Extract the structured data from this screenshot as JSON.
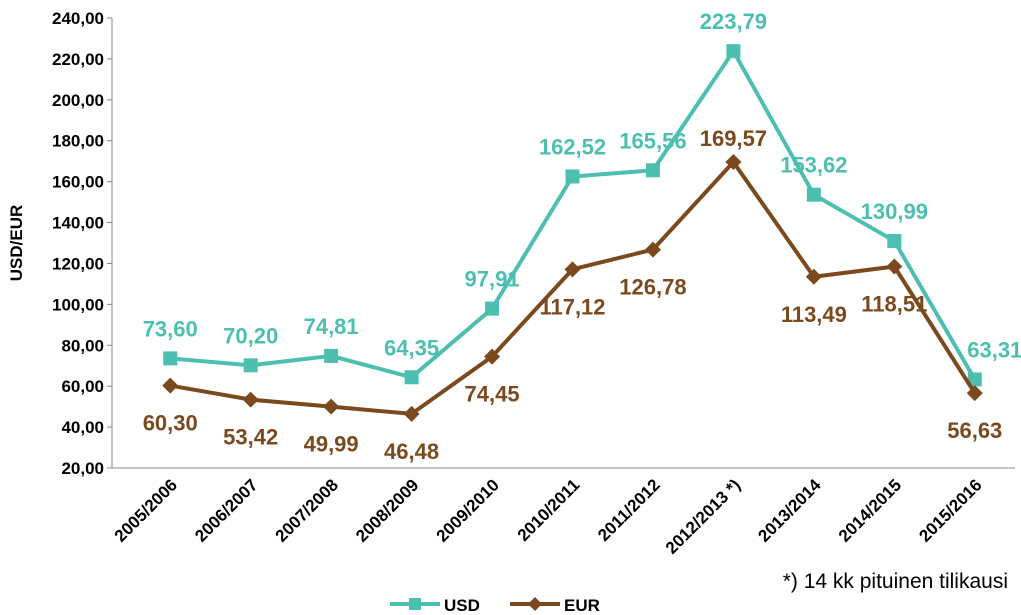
{
  "chart_data": {
    "type": "line",
    "y_label": "USD/EUR",
    "annotation": "*) 14 kk pituinen tilikausi",
    "categories": [
      "2005/2006",
      "2006/2007",
      "2007/2008",
      "2008/2009",
      "2009/2010",
      "2010/2011",
      "2011/2012",
      "2012/2013 *)",
      "2013/2014",
      "2014/2015",
      "2015/2016"
    ],
    "series": [
      {
        "name": "USD",
        "color": "#4cbfb0",
        "marker": "square",
        "values": [
          73.6,
          70.2,
          74.81,
          64.35,
          97.91,
          162.52,
          165.56,
          223.79,
          153.62,
          130.99,
          63.31
        ],
        "value_labels": [
          "73,60",
          "70,20",
          "74,81",
          "64,35",
          "97,91",
          "162,52",
          "165,56",
          "223,79",
          "153,62",
          "130,99",
          "63,31"
        ]
      },
      {
        "name": "EUR",
        "color": "#7a4a1e",
        "marker": "diamond",
        "values": [
          60.3,
          53.42,
          49.99,
          46.48,
          74.45,
          117.12,
          126.78,
          169.57,
          113.49,
          118.51,
          56.63
        ],
        "value_labels": [
          "60,30",
          "53,42",
          "49,99",
          "46,48",
          "74,45",
          "117,12",
          "126,78",
          "169,57",
          "113,49",
          "118,51",
          "56,63"
        ]
      }
    ],
    "ylim": [
      20,
      240
    ],
    "yticks": [
      {
        "value": 20,
        "label": "20,00"
      },
      {
        "value": 40,
        "label": "40,00"
      },
      {
        "value": 60,
        "label": "60,00"
      },
      {
        "value": 80,
        "label": "80,00"
      },
      {
        "value": 100,
        "label": "100,00"
      },
      {
        "value": 120,
        "label": "120,00"
      },
      {
        "value": 140,
        "label": "140,00"
      },
      {
        "value": 160,
        "label": "160,00"
      },
      {
        "value": 180,
        "label": "180,00"
      },
      {
        "value": 200,
        "label": "200,00"
      },
      {
        "value": 220,
        "label": "220,00"
      },
      {
        "value": 240,
        "label": "240,00"
      }
    ],
    "grid": false,
    "legend": "bottom"
  }
}
